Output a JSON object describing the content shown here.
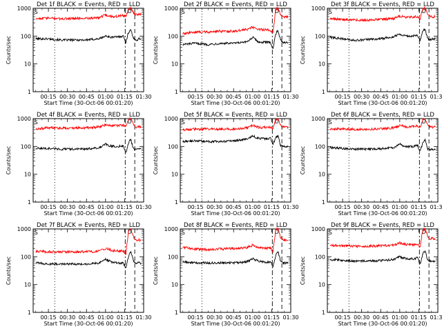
{
  "colors": {
    "events": "#000000",
    "lld": "#ff0000",
    "axes": "#000000",
    "background": "#ffffff"
  },
  "chart_data": [
    {
      "type": "line",
      "title": "Det 1f BLACK = Events, RED = LLD",
      "xlabel": "Start Time (30-Oct-06 00:01:20)",
      "ylabel": "Counts/sec",
      "yscale": "log",
      "ylim": [
        1,
        1000
      ],
      "yticks": [
        "1",
        "10",
        "100",
        "1000"
      ],
      "xticks": [
        "00:15",
        "00:30",
        "00:45",
        "01:00",
        "01:15",
        "01:30"
      ],
      "x_unit": "minutes after 00:00",
      "grid": false,
      "annotations": [
        "S",
        "D"
      ],
      "series": [
        {
          "name": "Events",
          "color": "#000000",
          "x": [
            5,
            15,
            25,
            35,
            45,
            55,
            60,
            65,
            70,
            74,
            76,
            78,
            79,
            80,
            82,
            84,
            86,
            88
          ],
          "values": [
            80,
            80,
            72,
            72,
            73,
            80,
            100,
            90,
            95,
            100,
            60,
            130,
            160,
            170,
            80,
            70,
            80,
            80
          ]
        },
        {
          "name": "LLD",
          "color": "#ff0000",
          "x": [
            5,
            15,
            25,
            35,
            45,
            55,
            60,
            65,
            70,
            74,
            76,
            78,
            79,
            80,
            82,
            84,
            86,
            88
          ],
          "values": [
            430,
            440,
            420,
            430,
            440,
            460,
            570,
            500,
            520,
            550,
            500,
            900,
            1000,
            1000,
            700,
            600,
            600,
            600
          ]
        }
      ]
    },
    {
      "type": "line",
      "title": "Det 2f BLACK = Events, RED = LLD",
      "xlabel": "Start Time (30-Oct-06 00:01:20)",
      "ylabel": "Counts/sec",
      "yscale": "log",
      "ylim": [
        1,
        1000
      ],
      "yticks": [
        "1",
        "10",
        "100",
        "1000"
      ],
      "xticks": [
        "00:15",
        "00:30",
        "00:45",
        "01:00",
        "01:15",
        "01:30"
      ],
      "x_unit": "minutes after 00:00",
      "grid": false,
      "annotations": [
        "S",
        "D"
      ],
      "series": [
        {
          "name": "Events",
          "color": "#000000",
          "x": [
            5,
            15,
            25,
            35,
            45,
            55,
            60,
            65,
            70,
            74,
            76,
            78,
            79,
            80,
            82,
            84,
            86,
            88
          ],
          "values": [
            50,
            55,
            50,
            55,
            55,
            60,
            90,
            60,
            60,
            60,
            35,
            110,
            150,
            160,
            70,
            60,
            60,
            60
          ]
        },
        {
          "name": "LLD",
          "color": "#ff0000",
          "x": [
            5,
            15,
            25,
            35,
            45,
            55,
            60,
            65,
            70,
            74,
            76,
            78,
            79,
            80,
            82,
            84,
            86,
            88
          ],
          "values": [
            120,
            140,
            140,
            150,
            150,
            170,
            210,
            170,
            170,
            160,
            130,
            800,
            1000,
            1000,
            600,
            500,
            500,
            500
          ]
        }
      ]
    },
    {
      "type": "line",
      "title": "Det 3f BLACK = Events, RED = LLD",
      "xlabel": "Start Time (30-Oct-06 00:01:20)",
      "ylabel": "Counts/sec",
      "yscale": "log",
      "ylim": [
        1,
        1000
      ],
      "yticks": [
        "1",
        "10",
        "100",
        "1000"
      ],
      "xticks": [
        "00:15",
        "00:30",
        "00:45",
        "01:00",
        "01:15",
        "01:30"
      ],
      "x_unit": "minutes after 00:00",
      "grid": false,
      "annotations": [
        "S",
        "D"
      ],
      "series": [
        {
          "name": "Events",
          "color": "#000000",
          "x": [
            5,
            15,
            25,
            35,
            45,
            55,
            60,
            65,
            70,
            74,
            76,
            78,
            79,
            80,
            82,
            84,
            86,
            88
          ],
          "values": [
            90,
            80,
            70,
            75,
            80,
            95,
            120,
            100,
            100,
            105,
            70,
            140,
            170,
            180,
            80,
            75,
            80,
            80
          ]
        },
        {
          "name": "LLD",
          "color": "#ff0000",
          "x": [
            5,
            15,
            25,
            35,
            45,
            55,
            60,
            65,
            70,
            74,
            76,
            78,
            79,
            80,
            82,
            84,
            86,
            88
          ],
          "values": [
            420,
            400,
            380,
            380,
            400,
            420,
            520,
            480,
            480,
            500,
            430,
            900,
            1000,
            1000,
            600,
            500,
            500,
            500
          ]
        }
      ]
    },
    {
      "type": "line",
      "title": "Det 4f BLACK = Events, RED = LLD",
      "xlabel": "Start Time (30-Oct-06 00:01:20)",
      "ylabel": "Counts/sec",
      "yscale": "log",
      "ylim": [
        1,
        1000
      ],
      "yticks": [
        "1",
        "10",
        "100",
        "1000"
      ],
      "xticks": [
        "00:15",
        "00:30",
        "00:45",
        "01:00",
        "01:15",
        "01:30"
      ],
      "x_unit": "minutes after 00:00",
      "grid": false,
      "annotations": [
        "S",
        "D"
      ],
      "series": [
        {
          "name": "Events",
          "color": "#000000",
          "x": [
            5,
            15,
            25,
            35,
            45,
            55,
            60,
            65,
            70,
            74,
            76,
            78,
            79,
            80,
            82,
            84,
            86,
            88
          ],
          "values": [
            85,
            85,
            80,
            80,
            82,
            90,
            120,
            100,
            100,
            105,
            60,
            130,
            160,
            170,
            80,
            75,
            80,
            80
          ]
        },
        {
          "name": "LLD",
          "color": "#ff0000",
          "x": [
            5,
            15,
            25,
            35,
            45,
            55,
            60,
            65,
            70,
            74,
            76,
            78,
            79,
            80,
            82,
            84,
            86,
            88
          ],
          "values": [
            430,
            460,
            460,
            460,
            470,
            500,
            600,
            540,
            560,
            580,
            520,
            900,
            1000,
            1000,
            600,
            500,
            500,
            500
          ]
        }
      ]
    },
    {
      "type": "line",
      "title": "Det 5f BLACK = Events, RED = LLD",
      "xlabel": "Start Time (30-Oct-06 00:01:20)",
      "ylabel": "Counts/sec",
      "yscale": "log",
      "ylim": [
        1,
        1000
      ],
      "yticks": [
        "1",
        "10",
        "100",
        "1000"
      ],
      "xticks": [
        "00:15",
        "00:30",
        "00:45",
        "01:00",
        "01:15",
        "01:30"
      ],
      "x_unit": "minutes after 00:00",
      "grid": false,
      "annotations": [
        "S",
        "D"
      ],
      "series": [
        {
          "name": "Events",
          "color": "#000000",
          "x": [
            5,
            15,
            25,
            35,
            45,
            55,
            60,
            65,
            70,
            74,
            76,
            78,
            79,
            80,
            82,
            84,
            86,
            88
          ],
          "values": [
            150,
            160,
            150,
            150,
            160,
            180,
            240,
            190,
            190,
            200,
            120,
            200,
            220,
            230,
            110,
            100,
            100,
            100
          ]
        },
        {
          "name": "LLD",
          "color": "#ff0000",
          "x": [
            5,
            15,
            25,
            35,
            45,
            55,
            60,
            65,
            70,
            74,
            76,
            78,
            79,
            80,
            82,
            84,
            86,
            88
          ],
          "values": [
            400,
            420,
            420,
            420,
            430,
            460,
            560,
            480,
            480,
            500,
            450,
            900,
            1000,
            1000,
            600,
            500,
            500,
            500
          ]
        }
      ]
    },
    {
      "type": "line",
      "title": "Det 6f BLACK = Events, RED = LLD",
      "xlabel": "Start Time (30-Oct-06 00:01:20)",
      "ylabel": "Counts/sec",
      "yscale": "log",
      "ylim": [
        1,
        1000
      ],
      "yticks": [
        "1",
        "10",
        "100",
        "1000"
      ],
      "xticks": [
        "00:15",
        "00:30",
        "00:45",
        "01:00",
        "01:15",
        "01:30"
      ],
      "x_unit": "minutes after 00:00",
      "grid": false,
      "annotations": [
        "S",
        "D"
      ],
      "series": [
        {
          "name": "Events",
          "color": "#000000",
          "x": [
            5,
            15,
            25,
            35,
            45,
            55,
            60,
            65,
            70,
            74,
            76,
            78,
            79,
            80,
            82,
            84,
            86,
            88
          ],
          "values": [
            90,
            85,
            80,
            80,
            82,
            90,
            120,
            100,
            100,
            110,
            65,
            130,
            160,
            170,
            80,
            75,
            80,
            80
          ]
        },
        {
          "name": "LLD",
          "color": "#ff0000",
          "x": [
            5,
            15,
            25,
            35,
            45,
            55,
            60,
            65,
            70,
            74,
            76,
            78,
            79,
            80,
            82,
            84,
            86,
            88
          ],
          "values": [
            420,
            430,
            410,
            420,
            430,
            460,
            570,
            500,
            520,
            560,
            480,
            900,
            1000,
            1000,
            600,
            500,
            500,
            500
          ]
        }
      ]
    },
    {
      "type": "line",
      "title": "Det 7f BLACK = Events, RED = LLD",
      "xlabel": "Start Time (30-Oct-06 00:01:20)",
      "ylabel": "Counts/sec",
      "yscale": "log",
      "ylim": [
        1,
        1000
      ],
      "yticks": [
        "1",
        "10",
        "100",
        "1000"
      ],
      "xticks": [
        "00:15",
        "00:30",
        "00:45",
        "01:00",
        "01:15",
        "01:30"
      ],
      "x_unit": "minutes after 00:00",
      "grid": false,
      "annotations": [
        "S",
        "D"
      ],
      "series": [
        {
          "name": "Events",
          "color": "#000000",
          "x": [
            5,
            15,
            25,
            35,
            45,
            55,
            60,
            65,
            70,
            74,
            76,
            78,
            79,
            80,
            82,
            84,
            86,
            88
          ],
          "values": [
            60,
            55,
            55,
            55,
            55,
            60,
            80,
            65,
            60,
            60,
            40,
            100,
            140,
            150,
            70,
            60,
            60,
            60
          ]
        },
        {
          "name": "LLD",
          "color": "#ff0000",
          "x": [
            5,
            15,
            25,
            35,
            45,
            55,
            60,
            65,
            70,
            74,
            76,
            78,
            79,
            80,
            82,
            84,
            86,
            88
          ],
          "values": [
            160,
            150,
            150,
            150,
            150,
            160,
            200,
            170,
            160,
            160,
            120,
            800,
            1000,
            1000,
            500,
            400,
            400,
            400
          ]
        }
      ]
    },
    {
      "type": "line",
      "title": "Det 8f BLACK = Events, RED = LLD",
      "xlabel": "Start Time (30-Oct-06 00:01:20)",
      "ylabel": "Counts/sec",
      "yscale": "log",
      "ylim": [
        1,
        1000
      ],
      "yticks": [
        "1",
        "10",
        "100",
        "1000"
      ],
      "xticks": [
        "00:15",
        "00:30",
        "00:45",
        "01:00",
        "01:15",
        "01:30"
      ],
      "x_unit": "minutes after 00:00",
      "grid": false,
      "annotations": [
        "S",
        "D"
      ],
      "series": [
        {
          "name": "Events",
          "color": "#000000",
          "x": [
            5,
            15,
            25,
            35,
            45,
            55,
            60,
            65,
            70,
            74,
            76,
            78,
            79,
            80,
            82,
            84,
            86,
            88
          ],
          "values": [
            65,
            60,
            60,
            60,
            60,
            65,
            85,
            70,
            65,
            65,
            45,
            100,
            140,
            150,
            70,
            60,
            60,
            60
          ]
        },
        {
          "name": "LLD",
          "color": "#ff0000",
          "x": [
            5,
            15,
            25,
            35,
            45,
            55,
            60,
            65,
            70,
            74,
            76,
            78,
            79,
            80,
            82,
            84,
            86,
            88
          ],
          "values": [
            220,
            190,
            180,
            190,
            200,
            210,
            260,
            210,
            210,
            200,
            160,
            800,
            1000,
            1000,
            500,
            400,
            400,
            400
          ]
        }
      ]
    },
    {
      "type": "line",
      "title": "Det 9f BLACK = Events, RED = LLD",
      "xlabel": "Start Time (30-Oct-06 00:01:20)",
      "ylabel": "Counts/sec",
      "yscale": "log",
      "ylim": [
        1,
        1000
      ],
      "yticks": [
        "1",
        "10",
        "100",
        "1000"
      ],
      "xticks": [
        "00:15",
        "00:30",
        "00:45",
        "01:00",
        "01:15",
        "01:30"
      ],
      "x_unit": "minutes after 00:00",
      "grid": false,
      "annotations": [
        "S",
        "D"
      ],
      "series": [
        {
          "name": "Events",
          "color": "#000000",
          "x": [
            5,
            15,
            25,
            35,
            45,
            55,
            60,
            65,
            70,
            74,
            76,
            78,
            79,
            80,
            82,
            84,
            86,
            88
          ],
          "values": [
            80,
            75,
            70,
            70,
            72,
            80,
            100,
            85,
            85,
            90,
            55,
            120,
            150,
            160,
            75,
            70,
            70,
            70
          ]
        },
        {
          "name": "LLD",
          "color": "#ff0000",
          "x": [
            5,
            15,
            25,
            35,
            45,
            55,
            60,
            65,
            70,
            74,
            76,
            78,
            79,
            80,
            82,
            84,
            86,
            88
          ],
          "values": [
            260,
            250,
            240,
            240,
            250,
            260,
            320,
            280,
            270,
            280,
            220,
            850,
            1000,
            1000,
            550,
            450,
            450,
            450
          ]
        }
      ]
    }
  ]
}
